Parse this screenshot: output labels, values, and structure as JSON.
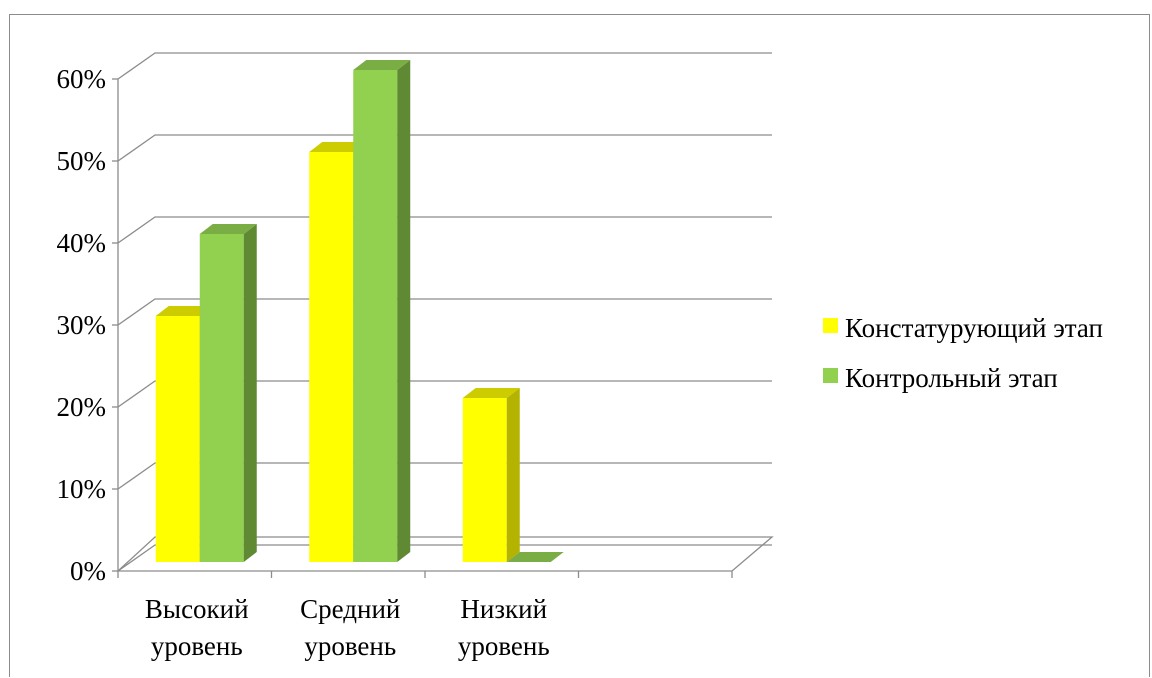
{
  "chart_data": {
    "type": "bar",
    "title": "",
    "xlabel": "",
    "ylabel": "",
    "categories": [
      [
        "Высокий",
        "уровень"
      ],
      [
        "Средний",
        "уровень"
      ],
      [
        "Низкий",
        "уровень"
      ]
    ],
    "series": [
      {
        "name": "Констатурующий этап",
        "values": [
          30,
          50,
          20
        ],
        "color": "#ffff00",
        "side_color": "#b3b300",
        "top_color": "#cccc00"
      },
      {
        "name": "Контрольный этап",
        "values": [
          40,
          60,
          0
        ],
        "color": "#92d050",
        "side_color": "#5f8a33",
        "top_color": "#7aad44"
      }
    ],
    "ylim": [
      0,
      60
    ],
    "yticks": [
      "0%",
      "10%",
      "20%",
      "30%",
      "40%",
      "50%",
      "60%"
    ],
    "grid": true,
    "three_d": true,
    "legend_position": "right"
  }
}
